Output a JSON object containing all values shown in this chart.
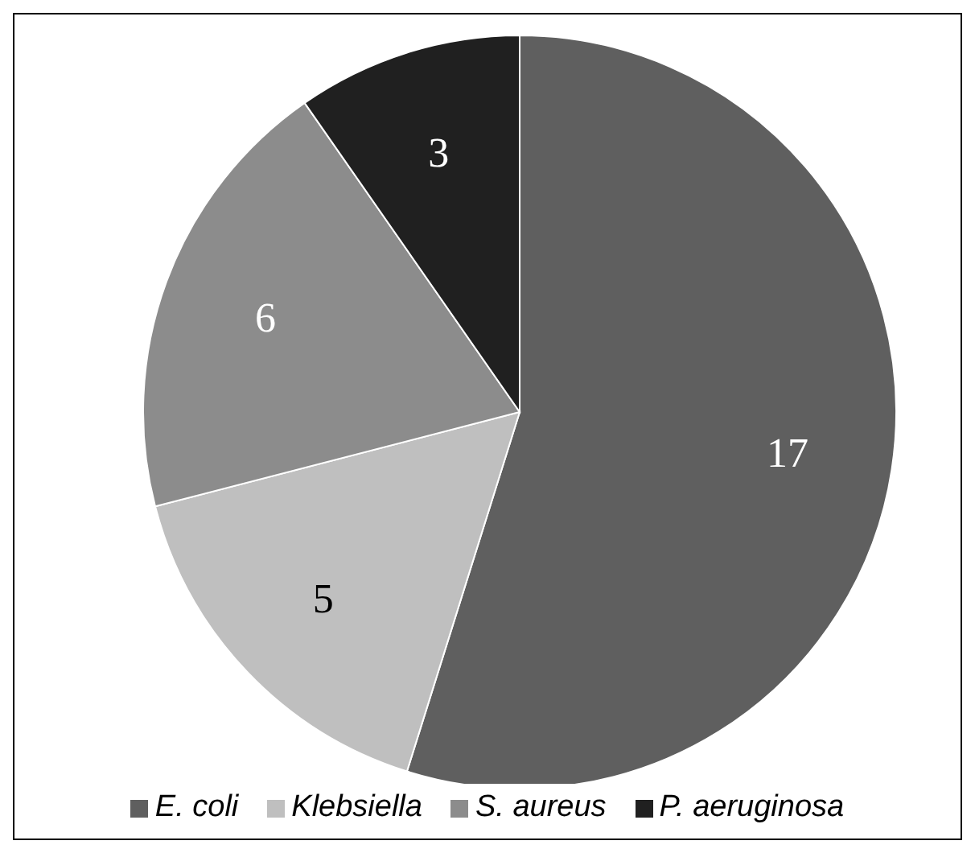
{
  "chart_data": {
    "type": "pie",
    "categories": [
      "E. coli",
      "Klebsiella",
      "S. aureus",
      "P. aeruginosa"
    ],
    "values": [
      17,
      5,
      6,
      3
    ],
    "colors": [
      "#5f5f5f",
      "#bfbfbf",
      "#8c8c8c",
      "#202020"
    ],
    "data_labels": true,
    "legend": "bottom"
  }
}
